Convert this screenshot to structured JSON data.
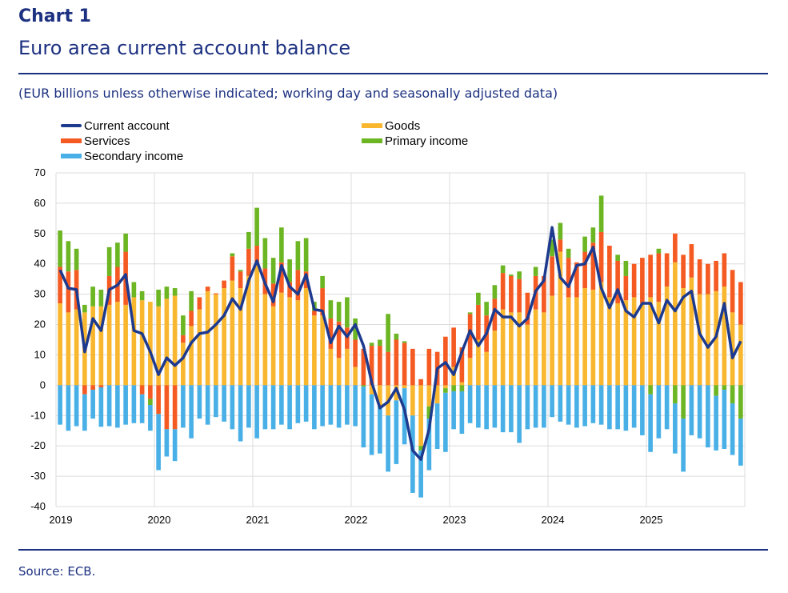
{
  "header": {
    "chart_number": "Chart 1",
    "title": "Euro area current account balance",
    "subtitle": "(EUR billions unless otherwise indicated; working day and seasonally adjusted data)"
  },
  "footer": {
    "source": "Source: ECB."
  },
  "colors": {
    "current_account": "#1d3a8f",
    "goods": "#f8b72f",
    "services": "#f45a22",
    "primary_income": "#6cb523",
    "secondary_income": "#48b0e6",
    "grid": "#dcdcdc",
    "title": "#1d3181"
  },
  "legend": [
    {
      "key": "current_account",
      "label": "Current account",
      "kind": "line"
    },
    {
      "key": "goods",
      "label": "Goods",
      "kind": "bar"
    },
    {
      "key": "services",
      "label": "Services",
      "kind": "bar"
    },
    {
      "key": "primary_income",
      "label": "Primary income",
      "kind": "bar"
    },
    {
      "key": "secondary_income",
      "label": "Secondary income",
      "kind": "bar"
    }
  ],
  "chart_data": {
    "type": "bar",
    "subtype": "stacked bar with line overlay",
    "title": "Euro area current account balance",
    "subtitle": "(EUR billions unless otherwise indicated; working day and seasonally adjusted data)",
    "xlabel": "",
    "ylabel": "",
    "frequency": "monthly",
    "x_start": "2019-01",
    "x_end": "2025-12",
    "x_tick_labels": [
      "2019",
      "2020",
      "2021",
      "2022",
      "2023",
      "2024",
      "2025"
    ],
    "y_tick_labels": [
      "70",
      "60",
      "50",
      "40",
      "30",
      "20",
      "10",
      "0",
      "-10",
      "-20",
      "-30",
      "-40"
    ],
    "ylim": [
      -40,
      70
    ],
    "y_step": 10,
    "grid": true,
    "legend_position": "top",
    "series": [
      {
        "name": "Goods",
        "key": "goods",
        "kind": "bar",
        "values": [
          27,
          24,
          25,
          24,
          26,
          26,
          26.5,
          27.5,
          26.5,
          29,
          28,
          27.5,
          26,
          28.5,
          29.5,
          14,
          19.5,
          25,
          31,
          30,
          32,
          34.5,
          32,
          36,
          40,
          30,
          26,
          30.5,
          29,
          28,
          32,
          23,
          23,
          12,
          9,
          12,
          6,
          0,
          -3,
          -7,
          -10,
          -5,
          -1,
          -10,
          -20,
          -7,
          -6,
          -1,
          6,
          1,
          9,
          15,
          11,
          18,
          25,
          24,
          24,
          20,
          25,
          24,
          29.5,
          44,
          29,
          29,
          32,
          31.5,
          34,
          29,
          27,
          28,
          29,
          27,
          29,
          27.5,
          32.5,
          40.5,
          32,
          35.5,
          30,
          30,
          31,
          32.5,
          24,
          20
        ]
      },
      {
        "name": "Services",
        "key": "services",
        "kind": "bar",
        "values": [
          12,
          13.5,
          13,
          -3,
          -1.5,
          -0.7,
          9.5,
          11.5,
          17.5,
          0,
          -3,
          -4.5,
          -9.5,
          -14.5,
          -14.5,
          2.5,
          5,
          4,
          1.5,
          0.3,
          2.5,
          8,
          5.5,
          9,
          6,
          8.5,
          7.5,
          10,
          5,
          10,
          5.5,
          1.5,
          9,
          10,
          12,
          7,
          9,
          12,
          13,
          13,
          11,
          15,
          14,
          12,
          2,
          12,
          11,
          16,
          13,
          11.5,
          14.5,
          11.5,
          12,
          10.5,
          12,
          12,
          11,
          10.5,
          11,
          12,
          13,
          4,
          13,
          11.5,
          12,
          15.5,
          16.5,
          17,
          14,
          8,
          11,
          15,
          14,
          16,
          11,
          9.5,
          11,
          11,
          11.5,
          10,
          10,
          11,
          14,
          14
        ]
      },
      {
        "name": "Primary income",
        "key": "primary_income",
        "kind": "bar",
        "values": [
          12,
          10,
          7,
          2.5,
          6.5,
          5.5,
          9.5,
          8,
          6,
          5,
          3,
          -2,
          5.5,
          4,
          2.5,
          6.5,
          6.5,
          0,
          0,
          0,
          0,
          1,
          0.5,
          5.5,
          12.5,
          10,
          8.5,
          11.5,
          7.5,
          9.5,
          11,
          3,
          4,
          6,
          6.5,
          10,
          7,
          -0.5,
          1,
          2,
          12.5,
          2,
          0.5,
          0,
          -1.5,
          -4,
          0,
          -1.5,
          -2,
          -2,
          0.5,
          4,
          4.5,
          4.5,
          2.5,
          0.5,
          2.5,
          0,
          3,
          0,
          5.5,
          5.5,
          3,
          0,
          5,
          5,
          12,
          0,
          2,
          5,
          0,
          0,
          -3,
          1.5,
          0,
          -6,
          -11,
          0,
          0,
          0,
          -3.5,
          -1.5,
          -6,
          -11
        ]
      },
      {
        "name": "Secondary income",
        "key": "secondary_income",
        "kind": "bar",
        "values": [
          -13,
          -15,
          -13.5,
          -12,
          -9.5,
          -13,
          -13.5,
          -14,
          -13,
          -12.5,
          -9.5,
          -8.5,
          -18.5,
          -9,
          -10.5,
          -14,
          -17.5,
          -11,
          -13,
          -10.5,
          -12,
          -14.5,
          -18.5,
          -14,
          -17.5,
          -14.5,
          -14.5,
          -13,
          -14.5,
          -12.5,
          -12,
          -14.5,
          -13.5,
          -13,
          -14,
          -13,
          -13.5,
          -20,
          -20,
          -15.5,
          -18.5,
          -21,
          -18.5,
          -25.5,
          -15.5,
          -17,
          -15,
          -19.5,
          -12.5,
          -14,
          -12.5,
          -14,
          -14.5,
          -14,
          -15.5,
          -15.5,
          -19,
          -14.5,
          -14,
          -14,
          -10.5,
          -12,
          -13,
          -14,
          -13.5,
          -12.5,
          -13,
          -14.5,
          -14.5,
          -15,
          -14,
          -16.5,
          -19,
          -17.5,
          -14.5,
          -16.5,
          -17.5,
          -16.5,
          -17.5,
          -20.5,
          -18,
          -19.5,
          -17,
          -15.5
        ]
      },
      {
        "name": "Current account",
        "key": "current_account",
        "kind": "line",
        "values": [
          38,
          32,
          31.5,
          11,
          22,
          18,
          31.5,
          33,
          36.5,
          18,
          17,
          11,
          3.5,
          9,
          6.5,
          9,
          14,
          17,
          17.5,
          20,
          23,
          28.5,
          25,
          34.5,
          41,
          33.5,
          27.5,
          39.5,
          32.5,
          30,
          36.5,
          25,
          24.5,
          14,
          19.5,
          16,
          20,
          13,
          1,
          -7.5,
          -5.5,
          -1,
          -8,
          -21.5,
          -24.5,
          -14.5,
          5.5,
          7.5,
          3.5,
          11,
          18,
          13,
          17,
          25,
          22.5,
          22.5,
          19.5,
          22,
          31,
          34.5,
          52,
          35.5,
          32.5,
          39.5,
          40,
          45.5,
          32,
          25.5,
          31.5,
          24.5,
          22.5,
          27,
          27,
          20.5,
          28,
          24.5,
          29,
          31,
          17,
          12.5,
          16,
          27,
          9,
          14.5
        ]
      }
    ]
  }
}
